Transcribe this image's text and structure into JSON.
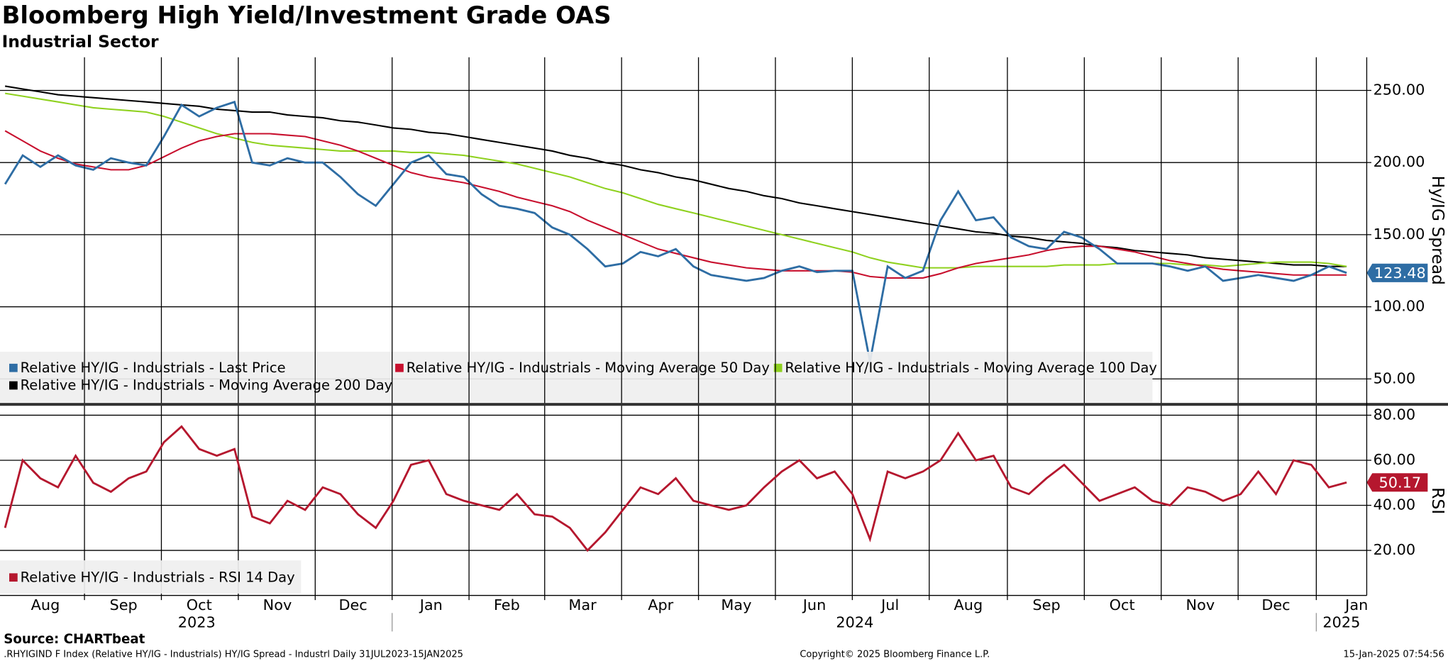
{
  "title": "Bloomberg High Yield/Investment Grade OAS",
  "subtitle": "Industrial Sector",
  "footer": {
    "source": "Source: CHARTbeat",
    "footnote": ".RHYIGIND F Index (Relative HY/IG - Industrials) HY/IG Spread - Industrl  Daily 31JUL2023-15JAN2025",
    "copyright": "Copyright© 2025 Bloomberg Finance L.P.",
    "timestamp": "15-Jan-2025 07:54:56"
  },
  "chart_data": [
    {
      "type": "line",
      "ylabel": "Hy/IG Spread",
      "xlim": [
        -2,
        540
      ],
      "ylim": [
        33,
        273
      ],
      "yticks": [
        {
          "value": 50,
          "label": "50.00"
        },
        {
          "value": 100,
          "label": "100.00"
        },
        {
          "value": 150,
          "label": "150.00"
        },
        {
          "value": 200,
          "label": "200.00"
        },
        {
          "value": 250,
          "label": "250.00"
        }
      ],
      "grid": true,
      "x": [
        0,
        7,
        14,
        21,
        28,
        35,
        42,
        49,
        56,
        63,
        70,
        77,
        84,
        91,
        98,
        105,
        112,
        119,
        126,
        133,
        140,
        147,
        154,
        161,
        168,
        175,
        182,
        189,
        196,
        203,
        210,
        217,
        224,
        231,
        238,
        245,
        252,
        259,
        266,
        273,
        280,
        287,
        294,
        301,
        308,
        315,
        322,
        329,
        336,
        343,
        350,
        357,
        364,
        371,
        378,
        385,
        392,
        399,
        406,
        413,
        420,
        427,
        434,
        441,
        448,
        455,
        462,
        469,
        476,
        483,
        490,
        497,
        504,
        511,
        518,
        525,
        532
      ],
      "series": [
        {
          "name": "Relative HY/IG - Industrials - Moving Average 200 Day",
          "color": "#000000",
          "values": [
            253,
            251,
            249,
            247,
            246,
            245,
            244,
            243,
            242,
            241,
            240,
            239,
            237,
            236,
            235,
            235,
            233,
            232,
            231,
            229,
            228,
            226,
            224,
            223,
            221,
            220,
            218,
            216,
            214,
            212,
            210,
            208,
            205,
            203,
            200,
            198,
            195,
            193,
            190,
            188,
            185,
            182,
            180,
            177,
            175,
            172,
            170,
            168,
            166,
            164,
            162,
            160,
            158,
            156,
            154,
            152,
            151,
            149,
            148,
            146,
            145,
            144,
            142,
            141,
            139,
            138,
            137,
            136,
            134,
            133,
            132,
            131,
            130,
            129,
            129,
            128,
            128
          ]
        },
        {
          "name": "Relative HY/IG - Industrials - Moving Average 100 Day",
          "color": "#8fd11f",
          "values": [
            248,
            246,
            244,
            242,
            240,
            238,
            237,
            236,
            235,
            232,
            228,
            224,
            220,
            217,
            214,
            212,
            211,
            210,
            209,
            208,
            208,
            208,
            208,
            207,
            207,
            206,
            205,
            203,
            201,
            199,
            196,
            193,
            190,
            186,
            182,
            179,
            175,
            171,
            168,
            165,
            162,
            159,
            156,
            153,
            150,
            147,
            144,
            141,
            138,
            134,
            131,
            129,
            127,
            127,
            127,
            128,
            128,
            128,
            128,
            128,
            129,
            129,
            129,
            130,
            130,
            130,
            130,
            129,
            129,
            128,
            129,
            130,
            131,
            131,
            131,
            130,
            128
          ]
        },
        {
          "name": "Relative HY/IG - Industrials - Moving Average 50 Day",
          "color": "#c8102e",
          "values": [
            222,
            215,
            208,
            203,
            199,
            197,
            195,
            195,
            198,
            204,
            210,
            215,
            218,
            220,
            220,
            220,
            219,
            218,
            215,
            212,
            208,
            203,
            198,
            193,
            190,
            188,
            186,
            183,
            180,
            176,
            173,
            170,
            166,
            160,
            155,
            150,
            145,
            140,
            137,
            134,
            131,
            129,
            127,
            126,
            125,
            125,
            125,
            125,
            124,
            121,
            120,
            120,
            120,
            123,
            127,
            130,
            132,
            134,
            136,
            139,
            141,
            142,
            142,
            140,
            138,
            135,
            132,
            130,
            128,
            126,
            125,
            124,
            123,
            122,
            122,
            122,
            122
          ]
        },
        {
          "name": "Relative HY/IG - Industrials - Last Price",
          "color": "#2e6da4",
          "last_label": "123.48",
          "values": [
            185,
            205,
            197,
            205,
            198,
            195,
            203,
            200,
            198,
            218,
            240,
            232,
            238,
            242,
            200,
            198,
            203,
            200,
            200,
            190,
            178,
            170,
            185,
            200,
            205,
            192,
            190,
            178,
            170,
            168,
            165,
            155,
            150,
            140,
            128,
            130,
            138,
            135,
            140,
            128,
            122,
            120,
            118,
            120,
            125,
            128,
            124,
            125,
            125,
            62,
            128,
            120,
            125,
            160,
            180,
            160,
            162,
            148,
            142,
            140,
            152,
            148,
            140,
            130,
            130,
            130,
            128,
            125,
            128,
            118,
            120,
            122,
            120,
            118,
            122,
            128,
            123.48
          ]
        }
      ],
      "legend_order": [
        3,
        2,
        1,
        0
      ]
    },
    {
      "type": "line",
      "ylabel": "RSI",
      "xlim": [
        -2,
        540
      ],
      "ylim": [
        0,
        84
      ],
      "yticks": [
        {
          "value": 20,
          "label": "20.00"
        },
        {
          "value": 40,
          "label": "40.00"
        },
        {
          "value": 60,
          "label": "60.00"
        },
        {
          "value": 80,
          "label": "80.00"
        }
      ],
      "grid": true,
      "xticks": [
        {
          "value": 16,
          "label": "Aug"
        },
        {
          "value": 47,
          "label": "Sep"
        },
        {
          "value": 77,
          "label": "Oct"
        },
        {
          "value": 108,
          "label": "Nov"
        },
        {
          "value": 138,
          "label": "Dec"
        },
        {
          "value": 169,
          "label": "Jan"
        },
        {
          "value": 199,
          "label": "Feb"
        },
        {
          "value": 229,
          "label": "Mar"
        },
        {
          "value": 260,
          "label": "Apr"
        },
        {
          "value": 290,
          "label": "May"
        },
        {
          "value": 321,
          "label": "Jun"
        },
        {
          "value": 351,
          "label": "Jul"
        },
        {
          "value": 382,
          "label": "Aug"
        },
        {
          "value": 413,
          "label": "Sep"
        },
        {
          "value": 443,
          "label": "Oct"
        },
        {
          "value": 474,
          "label": "Nov"
        },
        {
          "value": 504,
          "label": "Dec"
        },
        {
          "value": 536,
          "label": "Jan"
        }
      ],
      "years": [
        {
          "value": 76,
          "label": "2023"
        },
        {
          "value": 337,
          "label": "2024"
        },
        {
          "value": 530,
          "label": "2025"
        }
      ],
      "x": [
        0,
        7,
        14,
        21,
        28,
        35,
        42,
        49,
        56,
        63,
        70,
        77,
        84,
        91,
        98,
        105,
        112,
        119,
        126,
        133,
        140,
        147,
        154,
        161,
        168,
        175,
        182,
        189,
        196,
        203,
        210,
        217,
        224,
        231,
        238,
        245,
        252,
        259,
        266,
        273,
        280,
        287,
        294,
        301,
        308,
        315,
        322,
        329,
        336,
        343,
        350,
        357,
        364,
        371,
        378,
        385,
        392,
        399,
        406,
        413,
        420,
        427,
        434,
        441,
        448,
        455,
        462,
        469,
        476,
        483,
        490,
        497,
        504,
        511,
        518,
        525,
        532
      ],
      "series": [
        {
          "name": "Relative HY/IG - Industrials - RSI 14 Day",
          "color": "#b5172e",
          "last_label": "50.17",
          "values": [
            30,
            60,
            52,
            48,
            62,
            50,
            46,
            52,
            55,
            68,
            75,
            65,
            62,
            65,
            35,
            32,
            42,
            38,
            48,
            45,
            36,
            30,
            42,
            58,
            60,
            45,
            42,
            40,
            38,
            45,
            36,
            35,
            30,
            20,
            28,
            38,
            48,
            45,
            52,
            42,
            40,
            38,
            40,
            48,
            55,
            60,
            52,
            55,
            45,
            25,
            55,
            52,
            55,
            60,
            72,
            60,
            62,
            48,
            45,
            52,
            58,
            50,
            42,
            45,
            48,
            42,
            40,
            48,
            46,
            42,
            45,
            55,
            45,
            60,
            58,
            48,
            50.17
          ]
        }
      ],
      "legend_order": [
        0
      ]
    }
  ]
}
